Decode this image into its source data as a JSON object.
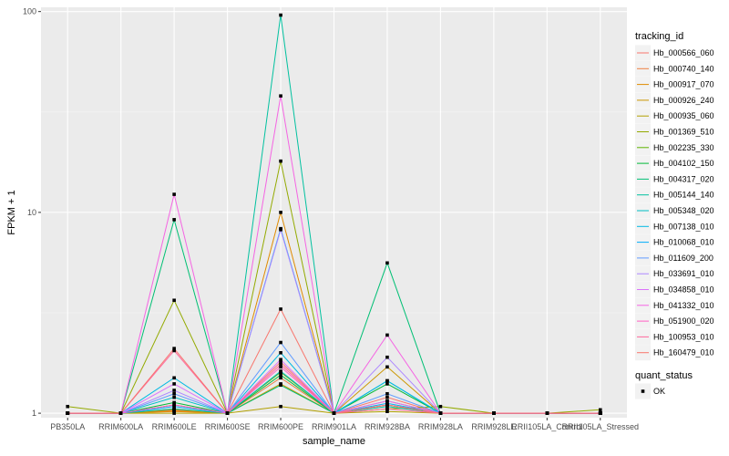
{
  "chart_data": {
    "type": "line",
    "xlabel": "sample_name",
    "ylabel": "FPKM + 1",
    "yscale": "log10",
    "ylim": [
      0.95,
      105
    ],
    "yticks": [
      1,
      10,
      100
    ],
    "ytick_labels": [
      "1",
      "10",
      "100"
    ],
    "categories": [
      "PB350LA",
      "RRIM600LA",
      "RRIM600LE",
      "RRIM600SE",
      "RRIM600PE",
      "RRIM901LA",
      "RRIM928BA",
      "RRIM928LA",
      "RRIM928LE",
      "RRII105LA_Control",
      "RRII105LA_Stressed"
    ],
    "grid": true,
    "legend": {
      "title": "tracking_id",
      "position": "right",
      "status_title": "quant_status",
      "status_items": [
        {
          "label": "OK",
          "marker": "square-point"
        }
      ]
    },
    "series": [
      {
        "name": "Hb_000566_060",
        "color": "#F8766D",
        "values": [
          1,
          1,
          1.05,
          1,
          1.8,
          1,
          1.2,
          1,
          1,
          1,
          1
        ]
      },
      {
        "name": "Hb_000740_140",
        "color": "#EE8043",
        "values": [
          1,
          1,
          1.03,
          1,
          1.5,
          1,
          1.1,
          1,
          1,
          1,
          1
        ]
      },
      {
        "name": "Hb_000917_070",
        "color": "#DF8B00",
        "values": [
          1,
          1,
          1.02,
          1,
          10.0,
          1,
          1.15,
          1,
          1,
          1,
          1
        ]
      },
      {
        "name": "Hb_000926_240",
        "color": "#CB9600",
        "values": [
          1,
          1,
          1.04,
          1,
          1.4,
          1,
          1.7,
          1,
          1,
          1,
          1
        ]
      },
      {
        "name": "Hb_000935_060",
        "color": "#B2A000",
        "values": [
          1,
          1,
          1.0,
          1,
          1.08,
          1,
          1.02,
          1,
          1,
          1,
          1
        ]
      },
      {
        "name": "Hb_001369_510",
        "color": "#93AA00",
        "values": [
          1.08,
          1,
          3.65,
          1,
          18.0,
          1,
          1.05,
          1.08,
          1,
          1,
          1.04
        ]
      },
      {
        "name": "Hb_002235_330",
        "color": "#5EB300",
        "values": [
          1,
          1,
          1.1,
          1,
          1.6,
          1,
          1.1,
          1,
          1,
          1,
          1
        ]
      },
      {
        "name": "Hb_004102_150",
        "color": "#00BA38",
        "values": [
          1,
          1,
          1.13,
          1,
          1.55,
          1,
          1.4,
          1,
          1,
          1,
          1
        ]
      },
      {
        "name": "Hb_004317_020",
        "color": "#00BF74",
        "values": [
          1,
          1,
          9.2,
          1,
          1.38,
          1,
          5.6,
          1,
          1,
          1,
          1
        ]
      },
      {
        "name": "Hb_005144_140",
        "color": "#00C19F",
        "values": [
          1,
          1,
          1.05,
          1,
          96.0,
          1,
          1.08,
          1,
          1,
          1,
          1
        ]
      },
      {
        "name": "Hb_005348_020",
        "color": "#00BFC4",
        "values": [
          1,
          1,
          1.2,
          1,
          1.62,
          1,
          1.45,
          1,
          1,
          1,
          1
        ]
      },
      {
        "name": "Hb_007138_010",
        "color": "#00B9E3",
        "values": [
          1,
          1,
          1.5,
          1,
          2.0,
          1,
          1.45,
          1,
          1,
          1,
          1
        ]
      },
      {
        "name": "Hb_010068_010",
        "color": "#00ADFA",
        "values": [
          1,
          1,
          1.08,
          1,
          8.3,
          1,
          1.12,
          1,
          1,
          1,
          1
        ]
      },
      {
        "name": "Hb_011609_200",
        "color": "#619CFF",
        "values": [
          1,
          1,
          1.25,
          1,
          2.25,
          1,
          1.25,
          1,
          1,
          1,
          1
        ]
      },
      {
        "name": "Hb_033691_010",
        "color": "#AE87FF",
        "values": [
          1,
          1,
          1.3,
          1,
          8.2,
          1,
          1.9,
          1,
          1,
          1,
          1
        ]
      },
      {
        "name": "Hb_034858_010",
        "color": "#DB72FB",
        "values": [
          1,
          1,
          1.4,
          1,
          1.85,
          1,
          1.15,
          1,
          1,
          1,
          1
        ]
      },
      {
        "name": "Hb_041332_010",
        "color": "#F564E3",
        "values": [
          1,
          1,
          12.3,
          1,
          38.0,
          1,
          2.45,
          1,
          1,
          1,
          1
        ]
      },
      {
        "name": "Hb_051900_020",
        "color": "#FF61C3",
        "values": [
          1,
          1,
          1.1,
          1,
          1.7,
          1,
          1.1,
          1,
          1,
          1,
          1
        ]
      },
      {
        "name": "Hb_100953_010",
        "color": "#FF699C",
        "values": [
          1,
          1,
          2.05,
          1,
          1.75,
          1,
          1.05,
          1,
          1,
          1,
          1
        ]
      },
      {
        "name": "Hb_160479_010",
        "color": "#F8766D",
        "values": [
          1,
          1,
          2.1,
          1,
          3.3,
          1,
          1.1,
          1,
          1,
          1,
          1
        ]
      }
    ]
  }
}
